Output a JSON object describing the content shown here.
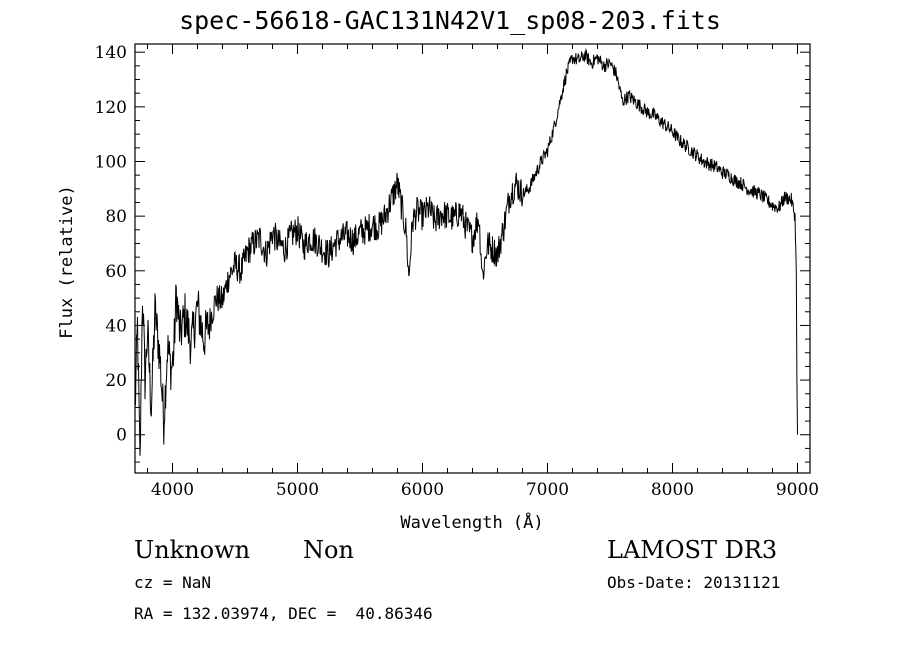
{
  "chart_data": {
    "type": "line",
    "title": "spec-56618-GAC131N42V1_sp08-203.fits",
    "xlabel": "Wavelength (Å)",
    "ylabel": "Flux (relative)",
    "xlim": [
      3700,
      9100
    ],
    "ylim": [
      -14,
      143
    ],
    "xticks": [
      4000,
      5000,
      6000,
      7000,
      8000,
      9000
    ],
    "yticks": [
      0,
      20,
      40,
      60,
      80,
      100,
      120,
      140
    ],
    "line_color": "#000000",
    "grid": false,
    "series": [
      {
        "x": [
          3700,
          3720,
          3740,
          3760,
          3780,
          3800,
          3830,
          3860,
          3900,
          3930,
          3960,
          3990,
          4010,
          4030,
          4060,
          4100,
          4150,
          4200,
          4250,
          4300,
          4350,
          4400,
          4450,
          4500,
          4550,
          4600,
          4650,
          4700,
          4750,
          4800,
          4850,
          4900,
          4950,
          5000,
          5050,
          5100,
          5150,
          5200,
          5250,
          5300,
          5350,
          5400,
          5450,
          5500,
          5550,
          5600,
          5650,
          5700,
          5750,
          5800,
          5830,
          5870,
          5890,
          5920,
          5960,
          6000,
          6050,
          6100,
          6150,
          6200,
          6250,
          6300,
          6350,
          6400,
          6450,
          6480,
          6520,
          6560,
          6600,
          6650,
          6700,
          6750,
          6800,
          6850,
          6900,
          6950,
          7000,
          7050,
          7100,
          7150,
          7200,
          7250,
          7300,
          7350,
          7400,
          7450,
          7500,
          7550,
          7600,
          7650,
          7700,
          7750,
          7800,
          7850,
          7900,
          7950,
          8000,
          8050,
          8100,
          8150,
          8200,
          8250,
          8300,
          8350,
          8400,
          8450,
          8500,
          8550,
          8600,
          8650,
          8700,
          8750,
          8800,
          8850,
          8900,
          8950,
          8980,
          8990,
          8995,
          9000
        ],
        "y": [
          8,
          40,
          -12,
          52,
          20,
          38,
          10,
          45,
          28,
          5,
          32,
          24,
          30,
          52,
          36,
          44,
          33,
          47,
          35,
          42,
          50,
          49,
          58,
          62,
          60,
          67,
          70,
          72,
          66,
          74,
          70,
          68,
          73,
          75,
          69,
          72,
          71,
          68,
          66,
          70,
          72,
          73,
          71,
          74,
          75,
          77,
          76,
          80,
          86,
          92,
          84,
          74,
          57,
          78,
          82,
          80,
          83,
          78,
          81,
          80,
          79,
          82,
          76,
          72,
          80,
          58,
          70,
          68,
          66,
          76,
          88,
          92,
          88,
          90,
          95,
          100,
          104,
          112,
          122,
          132,
          138,
          137,
          139,
          136,
          138,
          135,
          136,
          132,
          122,
          124,
          122,
          120,
          118,
          117,
          115,
          113,
          111,
          108,
          106,
          104,
          102,
          100,
          99,
          98,
          96,
          95,
          93,
          92,
          90,
          89,
          88,
          86,
          84,
          83,
          87,
          86,
          80,
          60,
          20,
          0
        ]
      }
    ]
  },
  "footer": {
    "object_class": "Unknown",
    "subclass": "Non",
    "survey": "LAMOST DR3",
    "redshift": "cz = NaN",
    "obs_date": "Obs-Date: 20131121",
    "coordinates": "RA = 132.03974, DEC =  40.86346"
  }
}
